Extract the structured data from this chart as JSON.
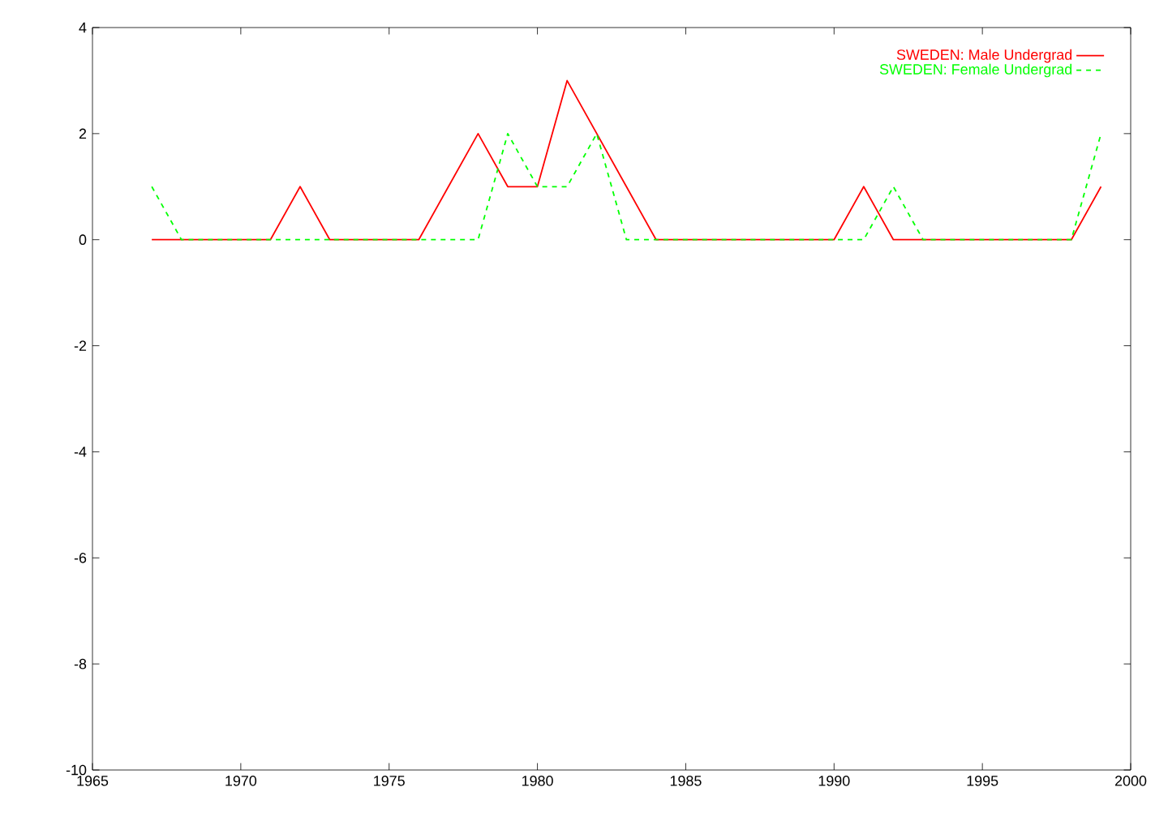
{
  "chart_data": {
    "type": "line",
    "x": [
      1967,
      1968,
      1969,
      1970,
      1971,
      1972,
      1973,
      1974,
      1975,
      1976,
      1977,
      1978,
      1979,
      1980,
      1981,
      1982,
      1983,
      1984,
      1985,
      1986,
      1987,
      1988,
      1989,
      1990,
      1991,
      1992,
      1993,
      1994,
      1995,
      1996,
      1997,
      1998,
      1999
    ],
    "series": [
      {
        "name": "SWEDEN: Male Undergrad",
        "color": "#ff0000",
        "line_style": "solid",
        "values": [
          0,
          0,
          0,
          0,
          0,
          1,
          0,
          0,
          0,
          0,
          1,
          2,
          1,
          1,
          3,
          2,
          1,
          0,
          0,
          0,
          0,
          0,
          0,
          0,
          1,
          0,
          0,
          0,
          0,
          0,
          0,
          0,
          1
        ]
      },
      {
        "name": "SWEDEN: Female Undergrad",
        "color": "#00ff00",
        "line_style": "dashed",
        "values": [
          1,
          0,
          0,
          0,
          0,
          0,
          0,
          0,
          0,
          0,
          0,
          0,
          2,
          1,
          1,
          2,
          0,
          0,
          0,
          0,
          0,
          0,
          0,
          0,
          0,
          1,
          0,
          0,
          0,
          0,
          0,
          0,
          2
        ]
      }
    ],
    "xlim": [
      1965,
      2000
    ],
    "xticks": [
      1965,
      1970,
      1975,
      1980,
      1985,
      1990,
      1995,
      2000
    ],
    "ylim": [
      -10,
      4
    ],
    "yticks": [
      -10,
      -8,
      -6,
      -4,
      -2,
      0,
      2,
      4
    ],
    "grid": false,
    "legend": "top right",
    "marker": "none"
  }
}
